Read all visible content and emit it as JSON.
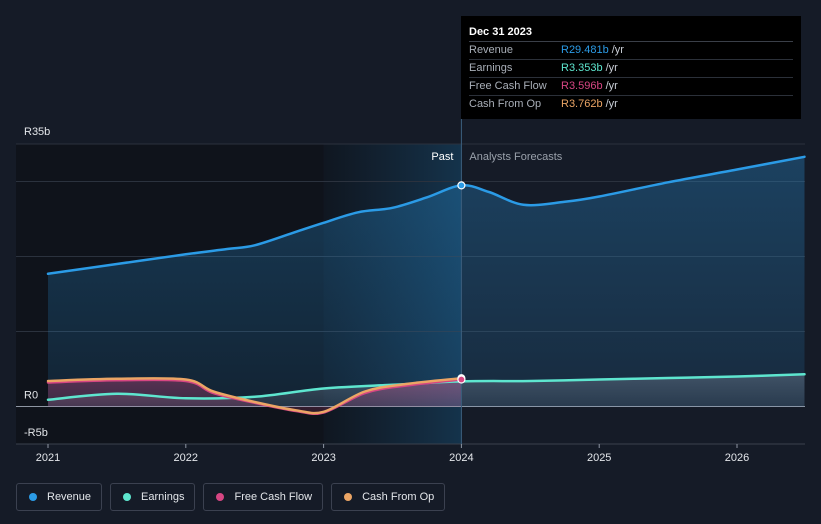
{
  "chart_data": {
    "type": "line",
    "title": "",
    "xlabel": "",
    "ylabel": "",
    "ylim": [
      -5,
      35
    ],
    "y_ticks": [
      {
        "value": 35,
        "label": "R35b"
      },
      {
        "value": 0,
        "label": "R0"
      },
      {
        "value": -5,
        "label": "-R5b"
      }
    ],
    "x_ticks": [
      {
        "value": 2021,
        "label": "2021"
      },
      {
        "value": 2022,
        "label": "2022"
      },
      {
        "value": 2023,
        "label": "2023"
      },
      {
        "value": 2024,
        "label": "2024"
      },
      {
        "value": 2025,
        "label": "2025"
      },
      {
        "value": 2026,
        "label": "2026"
      }
    ],
    "xlim": [
      2020.8,
      2026.49
    ],
    "divider_x": 2024.0,
    "highlight_start_x": 2023.0,
    "region_labels": {
      "past": "Past",
      "forecast": "Analysts Forecasts"
    },
    "series": [
      {
        "name": "Revenue",
        "color": "#2b9be6",
        "area": true,
        "x": [
          2021.0,
          2021.5,
          2022.0,
          2022.3,
          2022.5,
          2022.8,
          2023.0,
          2023.25,
          2023.5,
          2023.75,
          2024.0,
          2024.2,
          2024.45,
          2024.75,
          2025.0,
          2025.5,
          2026.0,
          2026.49
        ],
        "y": [
          17.7,
          19.0,
          20.3,
          21.0,
          21.5,
          23.3,
          24.5,
          25.9,
          26.5,
          27.9,
          29.481,
          28.6,
          26.9,
          27.3,
          28.0,
          29.9,
          31.6,
          33.3
        ]
      },
      {
        "name": "Earnings",
        "color": "#5ee6cf",
        "area": false,
        "x": [
          2021.0,
          2021.5,
          2022.0,
          2022.5,
          2023.0,
          2023.5,
          2024.0,
          2024.5,
          2025.0,
          2025.5,
          2026.0,
          2026.49
        ],
        "y": [
          0.9,
          1.7,
          1.1,
          1.3,
          2.4,
          2.9,
          3.353,
          3.4,
          3.6,
          3.8,
          4.0,
          4.3
        ]
      },
      {
        "name": "Free Cash Flow",
        "color": "#d64683",
        "area": false,
        "x": [
          2021.0,
          2021.5,
          2022.0,
          2022.2,
          2022.5,
          2022.8,
          2023.0,
          2023.3,
          2023.6,
          2024.0
        ],
        "y": [
          3.2,
          3.5,
          3.4,
          1.8,
          0.5,
          -0.6,
          -0.8,
          1.8,
          2.8,
          3.596
        ]
      },
      {
        "name": "Cash From Op",
        "color": "#eba565",
        "area": false,
        "x": [
          2021.0,
          2021.5,
          2022.0,
          2022.2,
          2022.5,
          2022.8,
          2023.0,
          2023.3,
          2023.6,
          2024.0
        ],
        "y": [
          3.4,
          3.7,
          3.6,
          2.0,
          0.6,
          -0.5,
          -0.7,
          2.0,
          3.0,
          3.762
        ]
      }
    ],
    "markers": [
      {
        "series": "Revenue",
        "x": 2024.0,
        "y": 29.481
      },
      {
        "series": "Cash From Op",
        "x": 2024.0,
        "y": 3.762
      },
      {
        "series": "Free Cash Flow",
        "x": 2024.0,
        "y": 3.596
      }
    ]
  },
  "tooltip": {
    "date": "Dec 31 2023",
    "rows": [
      {
        "label": "Revenue",
        "value": "R29.481b",
        "unit": "/yr",
        "color": "#2b9be6"
      },
      {
        "label": "Earnings",
        "value": "R3.353b",
        "unit": "/yr",
        "color": "#5ee6cf"
      },
      {
        "label": "Free Cash Flow",
        "value": "R3.596b",
        "unit": "/yr",
        "color": "#d64683"
      },
      {
        "label": "Cash From Op",
        "value": "R3.762b",
        "unit": "/yr",
        "color": "#eba565"
      }
    ]
  },
  "legend": [
    {
      "label": "Revenue",
      "color": "#2b9be6"
    },
    {
      "label": "Earnings",
      "color": "#5ee6cf"
    },
    {
      "label": "Free Cash Flow",
      "color": "#d64683"
    },
    {
      "label": "Cash From Op",
      "color": "#eba565"
    }
  ]
}
